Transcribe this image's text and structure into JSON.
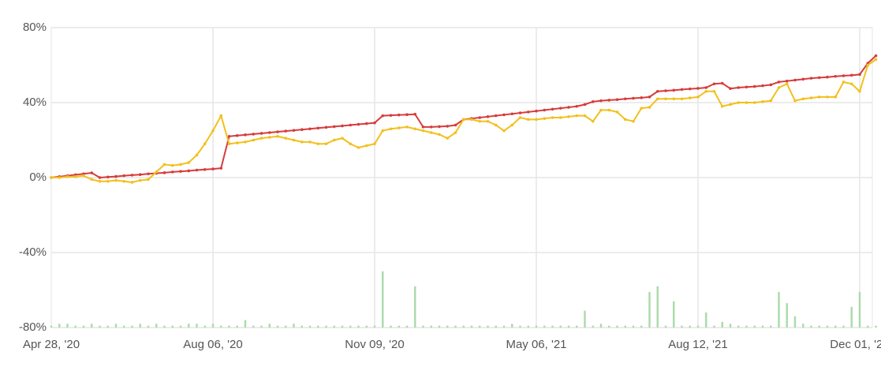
{
  "chart_data": {
    "type": "line",
    "categories": [
      "Apr 28, '20",
      null,
      null,
      null,
      null,
      null,
      null,
      null,
      null,
      null,
      null,
      null,
      null,
      null,
      null,
      null,
      null,
      null,
      null,
      null,
      "Aug 06, '20",
      null,
      null,
      null,
      null,
      null,
      null,
      null,
      null,
      null,
      null,
      null,
      null,
      null,
      null,
      null,
      null,
      null,
      null,
      null,
      "Nov 09, '20",
      null,
      null,
      null,
      null,
      null,
      null,
      null,
      null,
      null,
      null,
      null,
      null,
      null,
      null,
      null,
      null,
      null,
      null,
      null,
      "May 06, '21",
      null,
      null,
      null,
      null,
      null,
      null,
      null,
      null,
      null,
      null,
      null,
      null,
      null,
      null,
      null,
      null,
      null,
      null,
      null,
      "Aug 12, '21",
      null,
      null,
      null,
      null,
      null,
      null,
      null,
      null,
      null,
      null,
      null,
      null,
      null,
      null,
      null,
      null,
      null,
      null,
      null,
      "Dec 01, '21",
      null,
      null
    ],
    "series": [
      {
        "color": "#d63c3c",
        "values": [
          0,
          0.5,
          1,
          1.5,
          2,
          2.5,
          0,
          0.3,
          0.6,
          1,
          1.3,
          1.6,
          2,
          2.3,
          2.6,
          3,
          3.3,
          3.6,
          4,
          4.3,
          4.6,
          5,
          22,
          22.4,
          22.8,
          23.2,
          23.6,
          24,
          24.4,
          24.8,
          25.2,
          25.6,
          26,
          26.4,
          26.8,
          27.2,
          27.6,
          28,
          28.4,
          28.8,
          29.2,
          33,
          33.2,
          33.4,
          33.6,
          33.8,
          27,
          27,
          27.2,
          27.4,
          28,
          31,
          31.5,
          32,
          32.5,
          33,
          33.5,
          34,
          34.5,
          35,
          35.5,
          36,
          36.5,
          37,
          37.5,
          38,
          39,
          40.5,
          41,
          41.3,
          41.6,
          42,
          42.3,
          42.6,
          43,
          46,
          46.3,
          46.6,
          47,
          47.3,
          47.6,
          48,
          50,
          50.3,
          47.5,
          48,
          48.3,
          48.6,
          49,
          49.5,
          51,
          51.5,
          52,
          52.5,
          53,
          53.3,
          53.6,
          54,
          54.3,
          54.6,
          55,
          61,
          65
        ]
      },
      {
        "color": "#f2c01c",
        "values": [
          0,
          0,
          0.5,
          0.5,
          1,
          -1,
          -2,
          -2,
          -1.5,
          -2,
          -2.5,
          -1.5,
          -1,
          3,
          7,
          6.5,
          7,
          8,
          12,
          18,
          25,
          33,
          18,
          18.5,
          19,
          20,
          21,
          21.5,
          22,
          21,
          20,
          19,
          19,
          18,
          18,
          20,
          21,
          18,
          16,
          17,
          18,
          25,
          26,
          26.5,
          27,
          26,
          25,
          24,
          23,
          21,
          24,
          31,
          31,
          30,
          30,
          28,
          25,
          28,
          32,
          31,
          31,
          31.5,
          32,
          32,
          32.5,
          33,
          33,
          30,
          36,
          36,
          35,
          31,
          30,
          37,
          37.5,
          42,
          42,
          42,
          42,
          42.5,
          43,
          46,
          46,
          38,
          39,
          40,
          40,
          40,
          40.5,
          41,
          48,
          50,
          41,
          42,
          42.5,
          43,
          43,
          43,
          51,
          50,
          46,
          60,
          63
        ]
      }
    ],
    "volume": {
      "color": "#a9dba9",
      "values": [
        -79,
        -78,
        -78,
        -79,
        -79,
        -78,
        -79,
        -79,
        -78,
        -79,
        -79,
        -78,
        -79,
        -78,
        -79,
        -79,
        -79,
        -78,
        -78,
        -79,
        -78,
        -79,
        -79,
        -79,
        -76,
        -79,
        -79,
        -78,
        -79,
        -79,
        -78,
        -79,
        -79,
        -79,
        -79,
        -79,
        -79,
        -79,
        -79,
        -79,
        -79,
        -50,
        -79,
        -79,
        -79,
        -58,
        -79,
        -79,
        -79,
        -79,
        -79,
        -79,
        -79,
        -79,
        -79,
        -79,
        -79,
        -78,
        -79,
        -79,
        -79,
        -79,
        -79,
        -79,
        -79,
        -79,
        -71,
        -79,
        -78,
        -79,
        -79,
        -79,
        -79,
        -79,
        -61,
        -58,
        -79,
        -66,
        -79,
        -79,
        -79,
        -72,
        -79,
        -77,
        -78,
        -79,
        -79,
        -79,
        -79,
        -79,
        -61,
        -67,
        -74,
        -78,
        -79,
        -79,
        -79,
        -79,
        -79,
        -69,
        -61,
        -79,
        -79
      ]
    },
    "ylim": [
      -80,
      80
    ],
    "yticks": [
      {
        "value": -80,
        "label": "-80%"
      },
      {
        "value": -40,
        "label": "-40%"
      },
      {
        "value": 0,
        "label": "0%"
      },
      {
        "value": 40,
        "label": "40%"
      },
      {
        "value": 80,
        "label": "80%"
      }
    ],
    "grid": true
  }
}
